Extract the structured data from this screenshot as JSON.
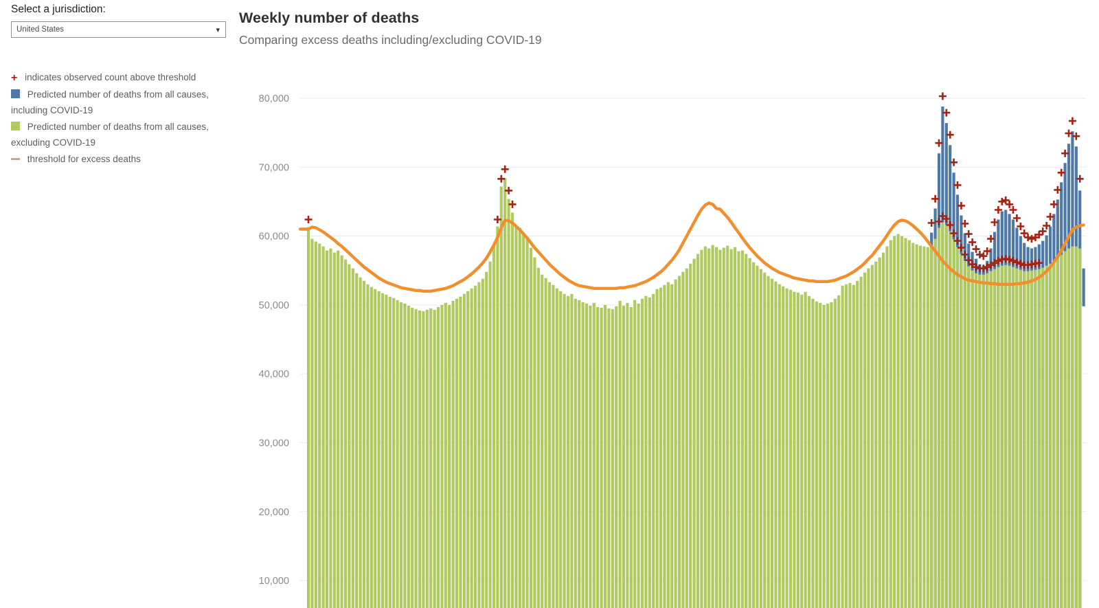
{
  "controls": {
    "jurisdiction_label": "Select a jurisdiction:",
    "jurisdiction_selected": "United States",
    "caret": "▾"
  },
  "header": {
    "title": "Weekly number of deaths",
    "subtitle": "Comparing excess deaths including/excluding COVID-19"
  },
  "legend": {
    "items": [
      {
        "glyph": "plus",
        "color": "#a42314",
        "text": "indicates observed count above threshold"
      },
      {
        "glyph": "square",
        "color": "#4e79a7",
        "text": "Predicted number of deaths from all causes, including COVID-19"
      },
      {
        "glyph": "square",
        "color": "#b1ca5f",
        "text": "Predicted number of deaths from all causes, excluding COVID-19"
      },
      {
        "glyph": "dash",
        "color": "#bcab99",
        "text": "threshold for excess deaths"
      }
    ]
  },
  "chart_data": {
    "type": "bar",
    "title": "Weekly number of deaths",
    "subtitle": "Comparing excess deaths including/excluding COVID-19",
    "x_unit": "week (Jan 2017 – Jan 2021, one bar per week)",
    "ylabel": "",
    "ylim_visible": [
      10000,
      80000
    ],
    "yticks": [
      10000,
      20000,
      30000,
      40000,
      50000,
      60000,
      70000,
      80000
    ],
    "grid": true,
    "legend_position": "left",
    "series": [
      {
        "name": "Predicted number of deaths from all causes, excluding COVID-19",
        "kind": "bar",
        "color": "#b1ca5f",
        "values": [
          61300,
          59600,
          59200,
          58900,
          58500,
          57900,
          58200,
          57600,
          57900,
          57200,
          56600,
          55900,
          55300,
          54600,
          54000,
          53500,
          53000,
          52600,
          52300,
          52000,
          51700,
          51500,
          51200,
          51000,
          50700,
          50400,
          50200,
          49900,
          49600,
          49400,
          49200,
          49100,
          49300,
          49500,
          49300,
          49700,
          50000,
          50300,
          50000,
          50600,
          50900,
          51200,
          51600,
          52000,
          52400,
          52800,
          53300,
          53800,
          54800,
          56300,
          58600,
          61400,
          67200,
          68400,
          65400,
          63400,
          61500,
          61200,
          60200,
          59900,
          58300,
          56900,
          55400,
          54400,
          53900,
          53300,
          52900,
          52400,
          52000,
          51600,
          51300,
          51600,
          50900,
          50700,
          50400,
          50200,
          49900,
          50300,
          49700,
          49600,
          50000,
          49500,
          49400,
          49800,
          50600,
          49900,
          50300,
          49700,
          50700,
          50200,
          50900,
          51300,
          51100,
          51600,
          52300,
          52500,
          52900,
          53300,
          53000,
          53700,
          54200,
          54800,
          55300,
          56000,
          56700,
          57400,
          58000,
          58500,
          58200,
          58700,
          58400,
          58000,
          58300,
          58600,
          58100,
          58400,
          57800,
          57900,
          57400,
          56800,
          56200,
          55700,
          55200,
          54700,
          54200,
          53800,
          53400,
          53000,
          52700,
          52400,
          52200,
          51900,
          51800,
          51500,
          51900,
          51300,
          50900,
          50500,
          50300,
          50000,
          50200,
          50400,
          50900,
          51400,
          52800,
          53000,
          53200,
          52900,
          53500,
          54100,
          54700,
          55300,
          55800,
          56300,
          56900,
          57600,
          58500,
          59400,
          60000,
          60300,
          60000,
          59700,
          59400,
          59000,
          58800,
          58600,
          58500,
          58400,
          58600,
          59600,
          61200,
          62000,
          61600,
          60700,
          59500,
          58400,
          57400,
          56400,
          55600,
          55000,
          54600,
          54400,
          54400,
          54600,
          54900,
          55200,
          55500,
          55700,
          55800,
          55700,
          55500,
          55300,
          55100,
          54900,
          54900,
          55000,
          55100,
          55200,
          55400,
          55700,
          56000,
          56400,
          56800,
          57300,
          57800,
          58200,
          58500,
          58500,
          58200,
          null
        ]
      },
      {
        "name": "Predicted number of deaths from all causes, including COVID-19",
        "kind": "bar",
        "color": "#4e79a7",
        "values": [
          null,
          null,
          null,
          null,
          null,
          null,
          null,
          null,
          null,
          null,
          null,
          null,
          null,
          null,
          null,
          null,
          null,
          null,
          null,
          null,
          null,
          null,
          null,
          null,
          null,
          null,
          null,
          null,
          null,
          null,
          null,
          null,
          null,
          null,
          null,
          null,
          null,
          null,
          null,
          null,
          null,
          null,
          null,
          null,
          null,
          null,
          null,
          null,
          null,
          null,
          null,
          null,
          null,
          null,
          null,
          null,
          null,
          null,
          null,
          null,
          null,
          null,
          null,
          null,
          null,
          null,
          null,
          null,
          null,
          null,
          null,
          null,
          null,
          null,
          null,
          null,
          null,
          null,
          null,
          null,
          null,
          null,
          null,
          null,
          null,
          null,
          null,
          null,
          null,
          null,
          null,
          null,
          null,
          null,
          null,
          null,
          null,
          null,
          null,
          null,
          null,
          null,
          null,
          null,
          null,
          null,
          null,
          null,
          null,
          null,
          null,
          null,
          null,
          null,
          null,
          null,
          null,
          null,
          null,
          null,
          null,
          null,
          null,
          null,
          null,
          null,
          null,
          null,
          null,
          null,
          null,
          null,
          null,
          null,
          null,
          null,
          null,
          null,
          null,
          null,
          null,
          null,
          null,
          null,
          null,
          null,
          null,
          null,
          null,
          null,
          null,
          null,
          null,
          null,
          null,
          null,
          null,
          null,
          null,
          null,
          null,
          null,
          null,
          null,
          null,
          null,
          null,
          null,
          60500,
          64000,
          72000,
          78800,
          76400,
          73200,
          69200,
          66000,
          63000,
          60400,
          58900,
          57700,
          56700,
          55900,
          55700,
          56400,
          58200,
          60600,
          62400,
          63600,
          63800,
          63200,
          62400,
          61200,
          60000,
          59000,
          58400,
          58200,
          58400,
          58800,
          59300,
          60100,
          61400,
          63200,
          65300,
          67800,
          70600,
          73400,
          75200,
          73000,
          66600,
          null
        ]
      },
      {
        "name": "threshold for excess deaths",
        "kind": "line",
        "color": "#f28e2b",
        "values": [
          61000,
          61300,
          61200,
          60900,
          60600,
          60200,
          59800,
          59400,
          58900,
          58500,
          58000,
          57500,
          57000,
          56500,
          56000,
          55500,
          55100,
          54700,
          54300,
          53900,
          53600,
          53300,
          53100,
          52900,
          52700,
          52500,
          52400,
          52300,
          52200,
          52100,
          52100,
          52000,
          52000,
          52000,
          52100,
          52200,
          52300,
          52400,
          52600,
          52800,
          53100,
          53400,
          53700,
          54100,
          54500,
          55000,
          55500,
          56100,
          56800,
          57700,
          58700,
          59800,
          61200,
          62300,
          62200,
          61900,
          61400,
          60900,
          60300,
          59700,
          59000,
          58300,
          57700,
          57100,
          56500,
          55900,
          55400,
          54900,
          54400,
          54000,
          53600,
          53300,
          53000,
          52800,
          52700,
          52600,
          52500,
          52400,
          52400,
          52400,
          52400,
          52400,
          52400,
          52400,
          52500,
          52500,
          52600,
          52700,
          52800,
          53000,
          53200,
          53400,
          53700,
          54000,
          54400,
          54800,
          55300,
          55900,
          56500,
          57200,
          58000,
          59000,
          60000,
          61000,
          62000,
          63000,
          63900,
          64500,
          64800,
          64600,
          64000,
          63900,
          63300,
          62700,
          62000,
          61200,
          60500,
          59700,
          59000,
          58300,
          57700,
          57100,
          56600,
          56100,
          55700,
          55300,
          55000,
          54700,
          54500,
          54300,
          54100,
          53900,
          53800,
          53700,
          53600,
          53500,
          53500,
          53400,
          53400,
          53400,
          53400,
          53500,
          53600,
          53800,
          54000,
          54200,
          54500,
          54800,
          55200,
          55600,
          56100,
          56700,
          57200,
          57900,
          58600,
          59300,
          60100,
          60900,
          61600,
          62100,
          62300,
          62200,
          61900,
          61500,
          61000,
          60500,
          59900,
          59200,
          58500,
          57800,
          57100,
          56400,
          55800,
          55300,
          54800,
          54400,
          54100,
          53800,
          53600,
          53500,
          53400,
          53300,
          53200,
          53200,
          53100,
          53100,
          53000,
          53000,
          53000,
          53000,
          53000,
          53100,
          53100,
          53200,
          53300,
          53500,
          53700,
          54000,
          54400,
          54900,
          55500,
          56200,
          57000,
          57900,
          58900,
          59900,
          60900,
          61300,
          61500,
          61600
        ]
      }
    ],
    "partial_last_bar": {
      "week": 209,
      "top": 55300,
      "bottom": 49800,
      "color": "#4e79a7"
    },
    "plus_markers": {
      "color": "#a42314",
      "meaning": "indicates observed count above threshold",
      "points": [
        [
          0,
          62400
        ],
        [
          51,
          62400
        ],
        [
          52,
          68300
        ],
        [
          53,
          69700
        ],
        [
          54,
          66600
        ],
        [
          55,
          64600
        ],
        [
          168,
          61900
        ],
        [
          169,
          65400
        ],
        [
          170,
          73500
        ],
        [
          171,
          80300
        ],
        [
          172,
          77900
        ],
        [
          173,
          74700
        ],
        [
          174,
          70700
        ],
        [
          175,
          67400
        ],
        [
          176,
          64400
        ],
        [
          177,
          61800
        ],
        [
          178,
          60300
        ],
        [
          179,
          59100
        ],
        [
          180,
          58100
        ],
        [
          181,
          57300
        ],
        [
          182,
          57100
        ],
        [
          183,
          57800
        ],
        [
          184,
          59600
        ],
        [
          185,
          62000
        ],
        [
          186,
          63800
        ],
        [
          187,
          65000
        ],
        [
          188,
          65200
        ],
        [
          189,
          64600
        ],
        [
          190,
          63800
        ],
        [
          191,
          62600
        ],
        [
          192,
          61400
        ],
        [
          193,
          60400
        ],
        [
          194,
          59800
        ],
        [
          195,
          59600
        ],
        [
          196,
          59800
        ],
        [
          197,
          60200
        ],
        [
          198,
          60700
        ],
        [
          199,
          61500
        ],
        [
          200,
          62800
        ],
        [
          201,
          64600
        ],
        [
          202,
          66700
        ],
        [
          203,
          69200
        ],
        [
          204,
          72000
        ],
        [
          205,
          74900
        ],
        [
          206,
          76700
        ],
        [
          207,
          74500
        ],
        [
          208,
          68300
        ],
        [
          170,
          62100
        ],
        [
          171,
          62900
        ],
        [
          172,
          62500
        ],
        [
          173,
          61600
        ],
        [
          174,
          60400
        ],
        [
          175,
          59300
        ],
        [
          176,
          58300
        ],
        [
          177,
          57300
        ],
        [
          178,
          56500
        ],
        [
          179,
          55900
        ],
        [
          180,
          55500
        ],
        [
          181,
          55300
        ],
        [
          182,
          55300
        ],
        [
          183,
          55500
        ],
        [
          184,
          55800
        ],
        [
          185,
          56100
        ],
        [
          186,
          56400
        ],
        [
          187,
          56600
        ],
        [
          188,
          56700
        ],
        [
          189,
          56600
        ],
        [
          190,
          56400
        ],
        [
          191,
          56200
        ],
        [
          192,
          56000
        ],
        [
          193,
          55800
        ],
        [
          194,
          55800
        ],
        [
          195,
          55900
        ],
        [
          196,
          56000
        ],
        [
          197,
          56100
        ]
      ]
    }
  }
}
